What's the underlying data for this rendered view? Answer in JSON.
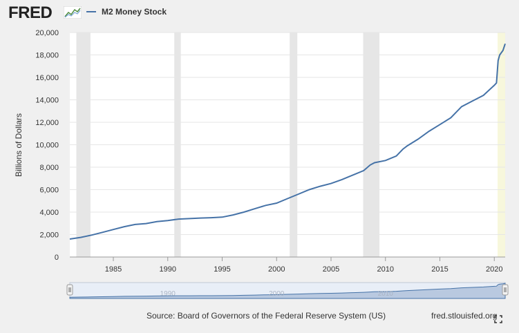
{
  "header": {
    "logo_text": "FRED",
    "legend_label": "M2 Money Stock"
  },
  "footer": {
    "source": "Source: Board of Governors of the Federal Reserve System (US)",
    "site": "fred.stlouisfed.org"
  },
  "colors": {
    "series": "#4572a7",
    "recession": "#e6e6e6",
    "highlight": "#f7f7dc",
    "navigator": "#b9c9e0"
  },
  "navigator": {
    "labels": [
      "1990",
      "2000",
      "2010"
    ]
  },
  "chart_data": {
    "type": "line",
    "title": "",
    "xlabel": "",
    "ylabel": "Billions of Dollars",
    "xlim": [
      1981,
      2021
    ],
    "ylim": [
      0,
      20000
    ],
    "grid": true,
    "legend_position": "top-left",
    "x_ticks": [
      "1985",
      "1990",
      "1995",
      "2000",
      "2005",
      "2010",
      "2015",
      "2020"
    ],
    "y_ticks": [
      "0",
      "2,000",
      "4,000",
      "6,000",
      "8,000",
      "10,000",
      "12,000",
      "14,000",
      "16,000",
      "18,000",
      "20,000"
    ],
    "recessions": [
      [
        1981.6,
        1982.9
      ],
      [
        1990.6,
        1991.2
      ],
      [
        2001.2,
        2001.9
      ],
      [
        2007.95,
        2009.45
      ]
    ],
    "highlight": [
      2020.3,
      2021
    ],
    "series": [
      {
        "name": "M2 Money Stock",
        "x": [
          1981.0,
          1982.0,
          1983.0,
          1984.0,
          1985.0,
          1986.0,
          1987.0,
          1988.0,
          1989.0,
          1990.0,
          1991.0,
          1992.0,
          1993.0,
          1994.0,
          1995.0,
          1996.0,
          1997.0,
          1998.0,
          1999.0,
          2000.0,
          2001.0,
          2002.0,
          2003.0,
          2004.0,
          2005.0,
          2006.0,
          2007.0,
          2008.0,
          2008.6,
          2009.0,
          2010.0,
          2011.0,
          2011.6,
          2012.0,
          2013.0,
          2014.0,
          2015.0,
          2016.0,
          2017.0,
          2018.0,
          2019.0,
          2020.0,
          2020.2,
          2020.35,
          2020.5,
          2020.8,
          2021.0
        ],
        "values": [
          1600,
          1750,
          1950,
          2200,
          2450,
          2700,
          2900,
          2980,
          3150,
          3250,
          3380,
          3420,
          3470,
          3500,
          3550,
          3750,
          4000,
          4300,
          4600,
          4800,
          5200,
          5600,
          6000,
          6300,
          6550,
          6900,
          7300,
          7700,
          8200,
          8400,
          8600,
          9000,
          9600,
          9900,
          10500,
          11200,
          11800,
          12400,
          13400,
          13900,
          14400,
          15300,
          15500,
          17500,
          18000,
          18400,
          19000
        ]
      }
    ]
  }
}
